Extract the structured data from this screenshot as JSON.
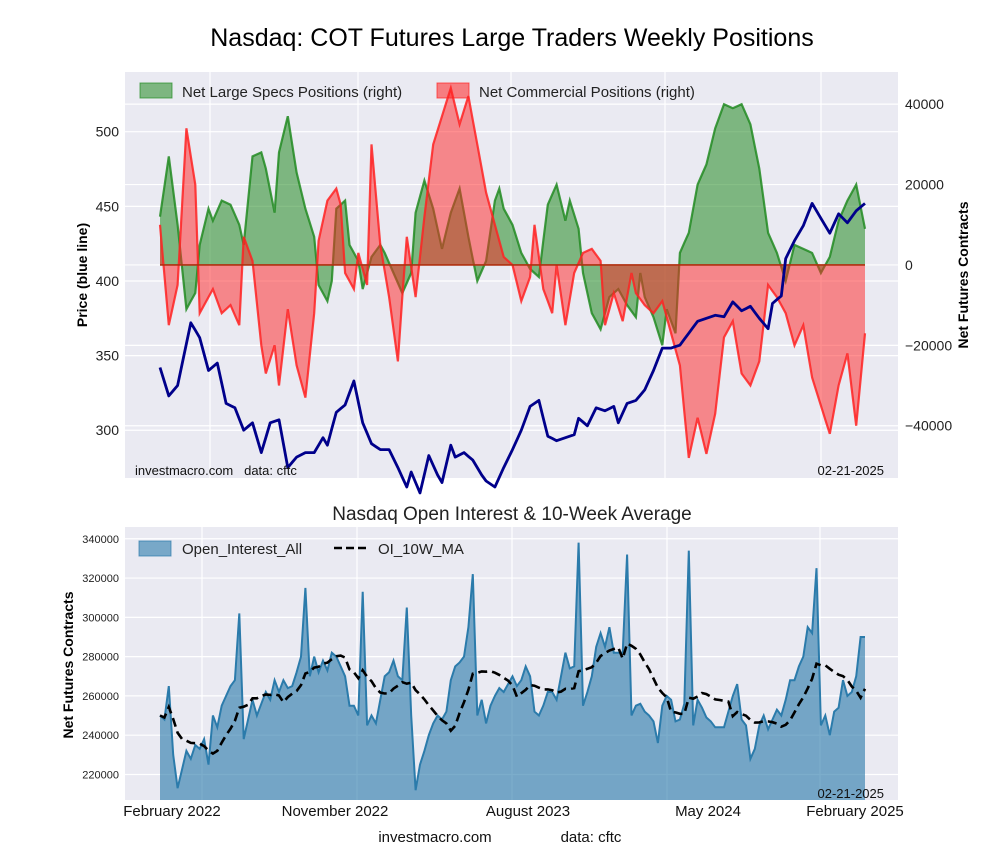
{
  "title": "Nasdaq: COT Futures Large Traders Weekly Positions",
  "footer": {
    "site": "investmacro.com",
    "source": "data: cftc"
  },
  "colors": {
    "price": "#00008b",
    "specs": "#228b22",
    "commercial": "#ff2222",
    "open_interest": "#2b7bab",
    "ma": "#000000",
    "panel_bg": "#eaeaf2",
    "grid": "#ffffff"
  },
  "chart_data": [
    {
      "type": "line",
      "title": "Nasdaq: COT Futures Large Traders Weekly Positions",
      "note_left": "investmacro.com   data: cftc",
      "note_right": "02-21-2025",
      "date_range": [
        "February 2022",
        "February 2025"
      ],
      "weeks": 160,
      "ylabel_left": "Price (blue line)",
      "ylabel_right": "Net Futures Contracts",
      "ylim_left": [
        268,
        540
      ],
      "ylim_right": [
        -53000,
        48000
      ],
      "yticks_left": [
        "300",
        "350",
        "400",
        "450",
        "500"
      ],
      "yticks_right": [
        "-40000",
        "-20000",
        "0",
        "20000",
        "40000"
      ],
      "yticks_right_labels": [
        "−40000",
        "−20000",
        "0",
        "20000",
        "40000"
      ],
      "legend": [
        "Net Large Specs Positions (right)",
        "Net Commercial Positions (right)"
      ],
      "legend_position": "top-left",
      "grid": true,
      "series": [
        {
          "name": "Price",
          "axis": "left",
          "keyframes": [
            [
              0,
              342
            ],
            [
              2,
              323
            ],
            [
              4,
              330
            ],
            [
              7,
              372
            ],
            [
              9,
              362
            ],
            [
              11,
              340
            ],
            [
              13,
              345
            ],
            [
              15,
              318
            ],
            [
              17,
              315
            ],
            [
              19,
              300
            ],
            [
              21,
              305
            ],
            [
              23,
              285
            ],
            [
              25,
              305
            ],
            [
              27,
              307
            ],
            [
              29,
              275
            ],
            [
              31,
              282
            ],
            [
              33,
              285
            ],
            [
              35,
              285
            ],
            [
              37,
              295
            ],
            [
              38,
              290
            ],
            [
              40,
              312
            ],
            [
              42,
              317
            ],
            [
              44,
              333
            ],
            [
              46,
              305
            ],
            [
              48,
              291
            ],
            [
              50,
              287
            ],
            [
              52,
              287
            ],
            [
              54,
              275
            ],
            [
              56,
              262
            ],
            [
              57,
              272
            ],
            [
              59,
              258
            ],
            [
              61,
              283
            ],
            [
              63,
              270
            ],
            [
              64,
              265
            ],
            [
              66,
              290
            ],
            [
              67,
              282
            ],
            [
              69,
              285
            ],
            [
              71,
              280
            ],
            [
              73,
              270
            ],
            [
              74,
              266
            ],
            [
              76,
              262
            ],
            [
              78,
              275
            ],
            [
              80,
              287
            ],
            [
              82,
              300
            ],
            [
              84,
              316
            ],
            [
              86,
              320
            ],
            [
              88,
              296
            ],
            [
              90,
              293
            ],
            [
              92,
              295
            ],
            [
              94,
              297
            ],
            [
              95,
              308
            ],
            [
              97,
              303
            ],
            [
              99,
              315
            ],
            [
              101,
              313
            ],
            [
              103,
              316
            ],
            [
              104,
              305
            ],
            [
              106,
              318
            ],
            [
              108,
              320
            ],
            [
              110,
              327
            ],
            [
              112,
              340
            ],
            [
              114,
              355
            ],
            [
              116,
              355
            ],
            [
              118,
              357
            ],
            [
              120,
              365
            ],
            [
              122,
              373
            ],
            [
              124,
              375
            ],
            [
              126,
              377
            ],
            [
              128,
              376
            ],
            [
              130,
              386
            ],
            [
              132,
              380
            ],
            [
              134,
              383
            ],
            [
              136,
              375
            ],
            [
              138,
              368
            ],
            [
              139,
              385
            ],
            [
              141,
              390
            ],
            [
              142,
              415
            ],
            [
              144,
              427
            ],
            [
              146,
              437
            ],
            [
              148,
              452
            ],
            [
              150,
              442
            ],
            [
              152,
              432
            ],
            [
              154,
              445
            ],
            [
              156,
              439
            ],
            [
              158,
              447
            ],
            [
              160,
              452
            ]
          ],
          "note": "x = week index 0-160"
        },
        {
          "name": "Net Large Specs Positions (right)",
          "axis": "right",
          "color": "#228b22",
          "keyframes": [
            [
              0,
              12000
            ],
            [
              2,
              27000
            ],
            [
              4,
              10000
            ],
            [
              6,
              -11000
            ],
            [
              8,
              -7000
            ],
            [
              9,
              5000
            ],
            [
              11,
              14000
            ],
            [
              12,
              11000
            ],
            [
              14,
              16000
            ],
            [
              16,
              15000
            ],
            [
              18,
              10000
            ],
            [
              19,
              5000
            ],
            [
              21,
              27000
            ],
            [
              23,
              28000
            ],
            [
              24,
              24000
            ],
            [
              26,
              13000
            ],
            [
              27,
              28000
            ],
            [
              29,
              37000
            ],
            [
              31,
              23000
            ],
            [
              33,
              14000
            ],
            [
              35,
              7000
            ],
            [
              36,
              -5000
            ],
            [
              38,
              -9000
            ],
            [
              39,
              -4000
            ],
            [
              40,
              14000
            ],
            [
              42,
              16000
            ],
            [
              43,
              5000
            ],
            [
              45,
              1000
            ],
            [
              46,
              -6000
            ],
            [
              48,
              2000
            ],
            [
              50,
              5000
            ],
            [
              51,
              3000
            ],
            [
              53,
              -2000
            ],
            [
              55,
              -7000
            ],
            [
              57,
              -2000
            ],
            [
              58,
              13000
            ],
            [
              60,
              21000
            ],
            [
              62,
              14000
            ],
            [
              64,
              4000
            ],
            [
              66,
              13000
            ],
            [
              68,
              19000
            ],
            [
              70,
              7000
            ],
            [
              72,
              -4000
            ],
            [
              74,
              1000
            ],
            [
              76,
              16000
            ],
            [
              77,
              19000
            ],
            [
              78,
              14000
            ],
            [
              80,
              10000
            ],
            [
              82,
              3000
            ],
            [
              84,
              -1000
            ],
            [
              86,
              -3000
            ],
            [
              88,
              15000
            ],
            [
              90,
              20000
            ],
            [
              92,
              11000
            ],
            [
              93,
              16000
            ],
            [
              95,
              9000
            ],
            [
              96,
              -2000
            ],
            [
              98,
              -12000
            ],
            [
              100,
              -16000
            ],
            [
              102,
              -8000
            ],
            [
              104,
              -6000
            ],
            [
              106,
              -10000
            ],
            [
              108,
              -13000
            ],
            [
              109,
              -2000
            ],
            [
              110,
              -8000
            ],
            [
              112,
              -13000
            ],
            [
              114,
              -20000
            ],
            [
              115,
              -11000
            ],
            [
              117,
              -17000
            ],
            [
              118,
              3000
            ],
            [
              120,
              8000
            ],
            [
              122,
              20000
            ],
            [
              124,
              25000
            ],
            [
              126,
              34000
            ],
            [
              128,
              40000
            ],
            [
              130,
              39000
            ],
            [
              132,
              40000
            ],
            [
              134,
              35000
            ],
            [
              136,
              24000
            ],
            [
              138,
              8000
            ],
            [
              140,
              3000
            ],
            [
              142,
              -4000
            ],
            [
              144,
              5000
            ],
            [
              146,
              4000
            ],
            [
              148,
              3000
            ],
            [
              150,
              -2000
            ],
            [
              152,
              2000
            ],
            [
              154,
              11000
            ],
            [
              156,
              16000
            ],
            [
              158,
              20000
            ],
            [
              160,
              9000
            ]
          ],
          "keyframes_tail_note": "continues below"
        }
      ]
    },
    {
      "type": "area",
      "title": "Nasdaq Open Interest & 10-Week Average",
      "note_right": "02-21-2025",
      "ylabel": "Net Futures Contracts",
      "ylim": [
        207000,
        346000
      ],
      "yticks": [
        "220000",
        "240000",
        "260000",
        "280000",
        "300000",
        "320000",
        "340000"
      ],
      "xticks": [
        "February 2022",
        "November 2022",
        "August 2023",
        "May 2024",
        "February 2025"
      ],
      "legend": [
        "Open_Interest_All",
        "OI_10W_MA"
      ],
      "legend_position": "top-left",
      "grid": true
    }
  ]
}
